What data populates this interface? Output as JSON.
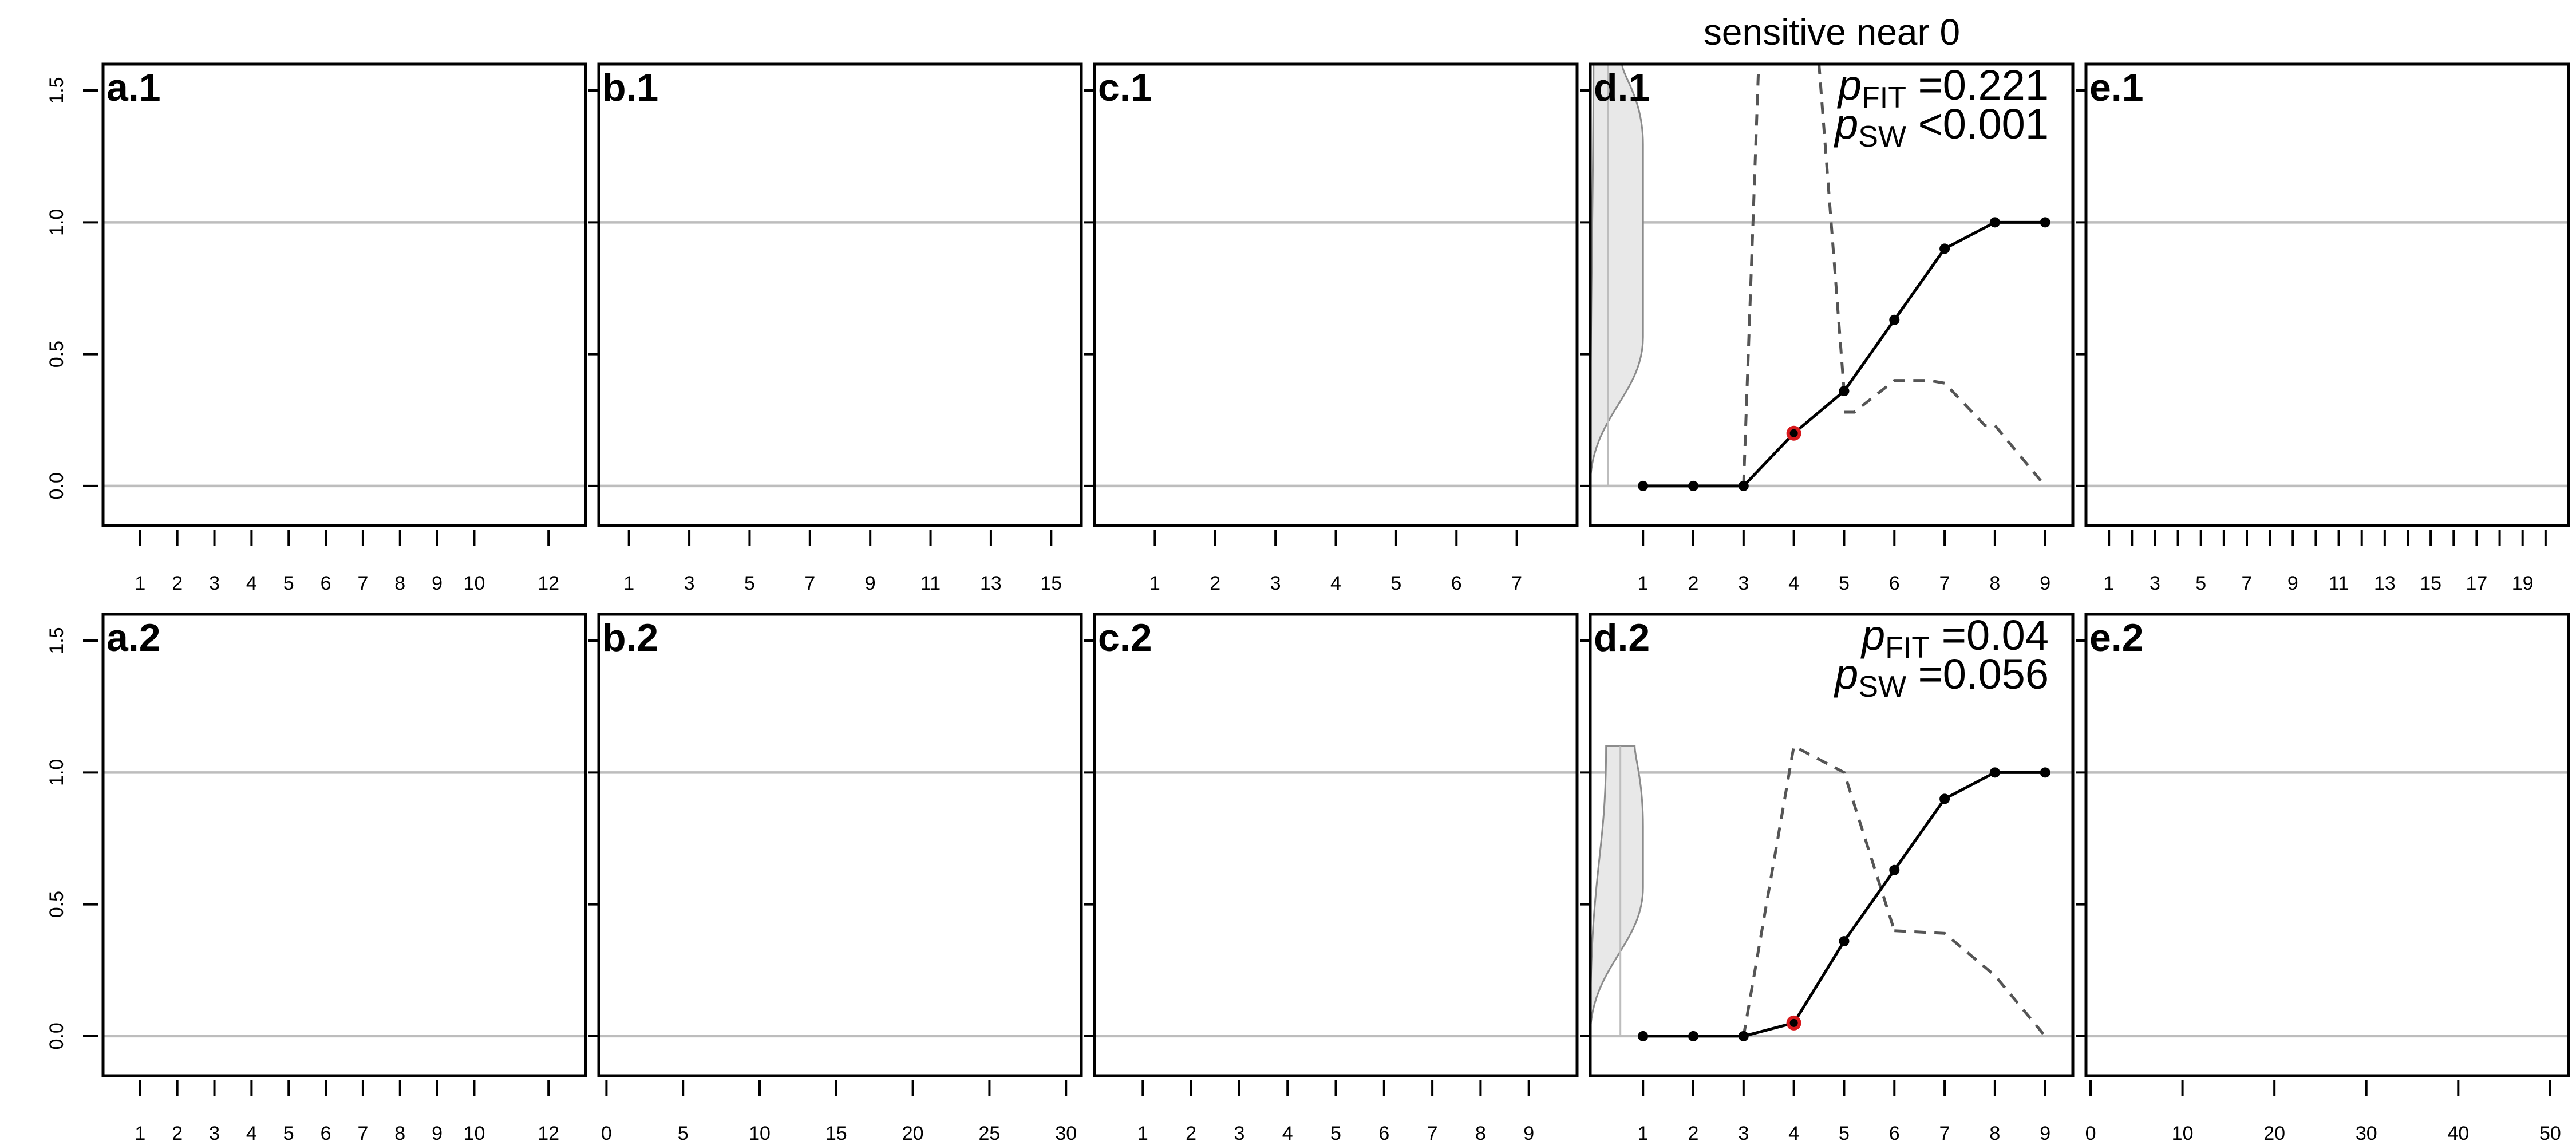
{
  "header": {
    "title": "sensitive near 0"
  },
  "chart_data": [
    {
      "id": "a.1",
      "type": "line",
      "title": "a.1",
      "xlim": [
        0,
        13
      ],
      "x_ticks": [
        1,
        2,
        3,
        4,
        5,
        6,
        7,
        8,
        9,
        10,
        12
      ],
      "ylim": [
        -0.15,
        1.6
      ],
      "y_ticks": [
        0.0,
        0.5,
        1.0,
        1.5
      ],
      "hlines": [
        0,
        1
      ]
    },
    {
      "id": "b.1",
      "type": "line",
      "title": "b.1",
      "xlim": [
        0,
        16
      ],
      "x_ticks": [
        1,
        3,
        5,
        7,
        9,
        11,
        13,
        15
      ],
      "ylim": [
        -0.15,
        1.6
      ],
      "y_ticks": [
        0.0,
        0.5,
        1.0,
        1.5
      ],
      "hlines": [
        0,
        1
      ]
    },
    {
      "id": "c.1",
      "type": "line",
      "title": "c.1",
      "xlim": [
        0,
        8
      ],
      "x_ticks": [
        1,
        2,
        3,
        4,
        5,
        6,
        7
      ],
      "ylim": [
        -0.15,
        1.6
      ],
      "y_ticks": [
        0.0,
        0.5,
        1.0,
        1.5
      ],
      "hlines": [
        0,
        1
      ]
    },
    {
      "id": "d.1",
      "type": "line",
      "title": "d.1",
      "xlim": [
        -0.05,
        9.55
      ],
      "x_ticks": [
        1,
        2,
        3,
        4,
        5,
        6,
        7,
        8,
        9
      ],
      "ylim": [
        -0.15,
        1.6
      ],
      "y_ticks": [
        0.0,
        0.5,
        1.0,
        1.5
      ],
      "hlines": [
        0,
        1
      ],
      "annotations": {
        "p_fit_label": "p",
        "p_fit_sub": "FIT",
        "p_fit_val": " =0.221",
        "p_sw_label": "p",
        "p_sw_sub": "SW",
        "p_sw_val": " <0.001"
      },
      "series": [
        {
          "x": [
            1,
            2,
            3,
            4,
            5,
            6,
            7,
            8,
            9
          ],
          "y": [
            0,
            0,
            0,
            0.2,
            0.36,
            0.63,
            0.9,
            1.0,
            1.0
          ],
          "highlight_index": 3,
          "highlight_color": "#d7191c"
        }
      ],
      "dashed_upper": {
        "x": [
          3,
          3.3,
          4.5,
          5
        ],
        "y": [
          0,
          1.6,
          1.6,
          0.36
        ]
      },
      "dashed_lower": {
        "x": [
          5,
          5.2,
          6,
          6.7,
          7,
          7.8,
          8,
          9
        ],
        "y": [
          0.28,
          0.28,
          0.4,
          0.4,
          0.39,
          0.23,
          0.23,
          0
        ]
      },
      "violin": {
        "x_left": -0.05,
        "x_center": 0.3,
        "x_max": 1.0,
        "y_start": 0,
        "y_top": 1.6,
        "y_peak": 1.6
      }
    },
    {
      "id": "e.1",
      "type": "line",
      "title": "e.1",
      "xlim": [
        0,
        21
      ],
      "x_ticks": [
        1,
        2,
        3,
        4,
        5,
        6,
        7,
        8,
        9,
        10,
        11,
        12,
        13,
        14,
        15,
        16,
        17,
        18,
        19,
        20
      ],
      "x_tick_labels": [
        "1",
        "",
        "3",
        "",
        "5",
        "",
        "7",
        "",
        "9",
        "",
        "11",
        "",
        "13",
        "",
        "15",
        "",
        "17",
        "",
        "19",
        ""
      ],
      "ylim": [
        -0.15,
        1.6
      ],
      "y_ticks": [
        0.0,
        0.5,
        1.0,
        1.5
      ],
      "hlines": [
        0,
        1
      ]
    },
    {
      "id": "a.2",
      "type": "line",
      "title": "a.2",
      "xlim": [
        0,
        13
      ],
      "x_ticks": [
        1,
        2,
        3,
        4,
        5,
        6,
        7,
        8,
        9,
        10,
        12
      ],
      "ylim": [
        -0.15,
        1.6
      ],
      "y_ticks": [
        0.0,
        0.5,
        1.0,
        1.5
      ],
      "hlines": [
        0,
        1
      ]
    },
    {
      "id": "b.2",
      "type": "line",
      "title": "b.2",
      "xlim": [
        -0.5,
        31
      ],
      "x_ticks": [
        0,
        5,
        10,
        15,
        20,
        25,
        30
      ],
      "ylim": [
        -0.15,
        1.6
      ],
      "y_ticks": [
        0.0,
        0.5,
        1.0,
        1.5
      ],
      "hlines": [
        0,
        1
      ]
    },
    {
      "id": "c.2",
      "type": "line",
      "title": "c.2",
      "xlim": [
        0,
        10
      ],
      "x_ticks": [
        1,
        2,
        3,
        4,
        5,
        6,
        7,
        8,
        9
      ],
      "ylim": [
        -0.15,
        1.6
      ],
      "y_ticks": [
        0.0,
        0.5,
        1.0,
        1.5
      ],
      "hlines": [
        0,
        1
      ]
    },
    {
      "id": "d.2",
      "type": "line",
      "title": "d.2",
      "xlim": [
        -0.05,
        9.55
      ],
      "x_ticks": [
        1,
        2,
        3,
        4,
        5,
        6,
        7,
        8,
        9
      ],
      "ylim": [
        -0.15,
        1.6
      ],
      "y_ticks": [
        0.0,
        0.5,
        1.0,
        1.5
      ],
      "hlines": [
        0,
        1
      ],
      "annotations": {
        "p_fit_label": "p",
        "p_fit_sub": "FIT",
        "p_fit_val": " =0.04",
        "p_sw_label": "p",
        "p_sw_sub": "SW",
        "p_sw_val": " =0.056"
      },
      "series": [
        {
          "x": [
            1,
            2,
            3,
            4,
            5,
            6,
            7,
            8,
            9
          ],
          "y": [
            0,
            0,
            0,
            0.05,
            0.36,
            0.63,
            0.9,
            1.0,
            1.0
          ],
          "highlight_index": 3,
          "highlight_color": "#d7191c"
        }
      ],
      "dashed_upper": {
        "x": [
          3,
          4,
          5,
          6
        ],
        "y": [
          0,
          1.1,
          1.0,
          0.4
        ]
      },
      "dashed_lower": {
        "x": [
          6,
          7,
          8,
          9
        ],
        "y": [
          0.4,
          0.39,
          0.23,
          0
        ]
      },
      "violin": {
        "x_left": -0.05,
        "x_center": 0.55,
        "x_max": 1.0,
        "y_start": 0,
        "y_top": 1.1,
        "y_peak": 1.1
      }
    },
    {
      "id": "e.2",
      "type": "line",
      "title": "e.2",
      "xlim": [
        -0.5,
        52
      ],
      "x_ticks": [
        0,
        10,
        20,
        30,
        40,
        50
      ],
      "ylim": [
        -0.15,
        1.6
      ],
      "y_ticks": [
        0.0,
        0.5,
        1.0,
        1.5
      ],
      "hlines": [
        0,
        1
      ]
    }
  ]
}
